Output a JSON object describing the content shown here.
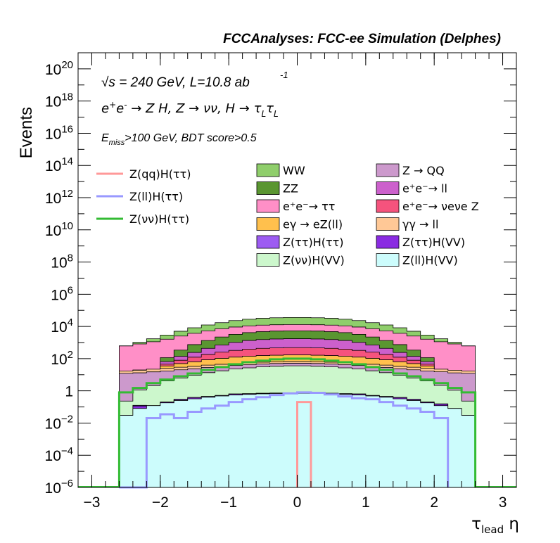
{
  "chart_data": {
    "type": "area",
    "title": "FCCAnalyses: FCC-ee Simulation (Delphes)",
    "xlabel": "τ_lead η",
    "ylabel": "Events",
    "x_scale": "linear",
    "y_scale": "log",
    "xlim": [
      -3.2,
      3.2
    ],
    "ylim": [
      1e-06,
      1e+21
    ],
    "x_ticks": [
      -3,
      -2,
      -1,
      0,
      1,
      2,
      3
    ],
    "x_tick_labels": [
      "−3",
      "−2",
      "−1",
      "0",
      "1",
      "2",
      "3"
    ],
    "y_ticks": [
      {
        "v": 1e-06,
        "base": "10",
        "exp": "−6"
      },
      {
        "v": 0.0001,
        "base": "10",
        "exp": "−4"
      },
      {
        "v": 0.01,
        "base": "10",
        "exp": "−2"
      },
      {
        "v": 1,
        "base": "1",
        "exp": ""
      },
      {
        "v": 100.0,
        "base": "10",
        "exp": "2"
      },
      {
        "v": 10000.0,
        "base": "10",
        "exp": "4"
      },
      {
        "v": 1000000.0,
        "base": "10",
        "exp": "6"
      },
      {
        "v": 100000000.0,
        "base": "10",
        "exp": "8"
      },
      {
        "v": 10000000000.0,
        "base": "10",
        "exp": "10"
      },
      {
        "v": 1000000000000.0,
        "base": "10",
        "exp": "12"
      },
      {
        "v": 100000000000000.0,
        "base": "10",
        "exp": "14"
      },
      {
        "v": 1e+16,
        "base": "10",
        "exp": "16"
      },
      {
        "v": 1e+18,
        "base": "10",
        "exp": "18"
      },
      {
        "v": 1e+20,
        "base": "10",
        "exp": "20"
      }
    ],
    "annotations": {
      "energy": "√s = 240 GeV, L=10.8 ab",
      "energy_sup": "-1",
      "process": "e⁺e⁻ → Z H, Z → νν, H → τ_Lτ_L",
      "cuts": "E_miss>100 GeV, BDT score>0.5"
    },
    "bin_edges": [
      -2.6,
      -2.4,
      -2.2,
      -2.0,
      -1.8,
      -1.6,
      -1.4,
      -1.2,
      -1.0,
      -0.8,
      -0.6,
      -0.4,
      -0.2,
      0.0,
      0.2,
      0.4,
      0.6,
      0.8,
      1.0,
      1.2,
      1.4,
      1.6,
      1.8,
      2.0,
      2.2,
      2.4,
      2.6
    ],
    "stack_order_bottom_to_top": [
      "Z(ll)H(VV)",
      "Z(ττ)H(VV)",
      "Z(ττ)H(ττ)",
      "Z(νν)H(VV)",
      "Z → QQ",
      "γγ → ll",
      "eγ → eZ(ll)",
      "e⁺e⁻→ νeνe Z",
      "e⁺e⁻→ ll",
      "ZZ",
      "e⁺e⁻→ ττ",
      "WW"
    ],
    "stack_series": [
      {
        "name": "Z(ll)H(VV)",
        "label_main": "Z(ll)H(VV)",
        "color": "#ccfcfc",
        "values": [
          0.03,
          0.08,
          0.12,
          0.18,
          0.25,
          0.32,
          0.4,
          0.48,
          0.55,
          0.6,
          0.65,
          0.68,
          0.7,
          0.7,
          0.68,
          0.65,
          0.6,
          0.55,
          0.48,
          0.4,
          0.32,
          0.25,
          0.18,
          0.12,
          0.08,
          0.03
        ]
      },
      {
        "name": "Z(ττ)H(VV)",
        "label_main": "Z(ττ)H(VV)",
        "color": "#8a2be2",
        "values": [
          0.0,
          0.035,
          0.0,
          0.02,
          0.04,
          0.06,
          0.04,
          0.03,
          0.08,
          0.06,
          0.05,
          0.04,
          0.05,
          0.05,
          0.04,
          0.05,
          0.06,
          0.08,
          0.03,
          0.04,
          0.06,
          0.04,
          0.02,
          0.03,
          0.0,
          0.0
        ]
      },
      {
        "name": "Z(ττ)H(ττ)",
        "label_main": "Z(ττ)H(ττ)",
        "color": "#9d5cf2",
        "values": [
          0.0,
          0.01,
          0.0,
          0.005,
          0.01,
          0.012,
          0.01,
          0.008,
          0.012,
          0.01,
          0.008,
          0.01,
          0.01,
          0.01,
          0.01,
          0.008,
          0.01,
          0.012,
          0.008,
          0.01,
          0.012,
          0.01,
          0.005,
          0.006,
          0.0,
          0.0
        ]
      },
      {
        "name": "Z(νν)H(VV)",
        "label_main": "Z(νν)H(VV)",
        "color": "#ccf7cc",
        "values": [
          0.2,
          1,
          2,
          4,
          6,
          9,
          13,
          17,
          22,
          26,
          30,
          33,
          35,
          35,
          33,
          30,
          26,
          22,
          17,
          13,
          9,
          6,
          4,
          2,
          1,
          0.2
        ]
      },
      {
        "name": "Z → QQ",
        "label_main": "Z → QQ",
        "color": "#cc99cc",
        "values": [
          12,
          12,
          13,
          13,
          14,
          14,
          15,
          15,
          15,
          16,
          16,
          16,
          16,
          16,
          16,
          16,
          16,
          15,
          15,
          15,
          14,
          14,
          13,
          13,
          12,
          12
        ]
      },
      {
        "name": "γγ → ll",
        "label_main": "γγ → ll",
        "color": "#ffc896",
        "values": [
          5,
          6,
          7,
          8,
          9,
          10,
          11,
          12,
          12,
          13,
          13,
          13,
          14,
          14,
          13,
          13,
          13,
          12,
          12,
          11,
          10,
          9,
          8,
          7,
          6,
          5
        ]
      },
      {
        "name": "eγ → eZ(ll)",
        "label_main": "eγ → eZ(ll)",
        "color": "#ffc04d",
        "values": [
          0,
          0,
          0,
          10,
          20,
          30,
          45,
          60,
          75,
          85,
          95,
          100,
          105,
          105,
          100,
          95,
          85,
          75,
          60,
          45,
          30,
          20,
          10,
          0,
          0,
          0
        ]
      },
      {
        "name": "e⁺e⁻→ νeνe Z",
        "label_main": "e⁺e⁻→ νeνe Z",
        "color": "#f5537d",
        "values": [
          0,
          0,
          0,
          10,
          30,
          60,
          100,
          150,
          200,
          250,
          280,
          300,
          310,
          310,
          300,
          280,
          250,
          200,
          150,
          100,
          60,
          30,
          10,
          0,
          0,
          0
        ]
      },
      {
        "name": "e⁺e⁻→ ll",
        "label_main": "e⁺e⁻→ ll",
        "color": "#cc60cc",
        "values": [
          0,
          0,
          0,
          20,
          60,
          120,
          250,
          450,
          700,
          950,
          1100,
          1200,
          1250,
          1250,
          1200,
          1100,
          950,
          700,
          450,
          250,
          120,
          60,
          20,
          0,
          0,
          0
        ]
      },
      {
        "name": "ZZ",
        "label_main": "ZZ",
        "color": "#5a9631",
        "values": [
          0,
          0,
          0,
          50,
          200,
          500,
          900,
          1500,
          2200,
          2800,
          3200,
          3500,
          3600,
          3600,
          3500,
          3200,
          2800,
          2200,
          1500,
          900,
          500,
          200,
          50,
          0,
          0,
          0
        ]
      },
      {
        "name": "e⁺e⁻→ ττ",
        "label_main": "e⁺e⁻→ ττ",
        "color": "#ff8fc7",
        "values": [
          600,
          800,
          1100,
          1500,
          2200,
          3000,
          4000,
          5000,
          6000,
          6800,
          7300,
          7600,
          7800,
          7800,
          7600,
          7300,
          6800,
          6000,
          5000,
          4000,
          3000,
          2200,
          1500,
          1100,
          800,
          600
        ]
      },
      {
        "name": "WW",
        "label_main": "WW",
        "color": "#8fce6b",
        "values": [
          0,
          200,
          600,
          1300,
          2500,
          4500,
          7000,
          10000,
          14000,
          17000,
          20000,
          22000,
          23000,
          23000,
          22000,
          20000,
          17000,
          14000,
          10000,
          7000,
          4500,
          2500,
          1300,
          600,
          200,
          0
        ]
      }
    ],
    "line_series": [
      {
        "name": "Z(qq)H(ττ)",
        "color": "#ff9999",
        "bin_edges": [
          0.0,
          0.2
        ],
        "values": [
          0.2
        ]
      },
      {
        "name": "Z(ll)H(ττ)",
        "color": "#9999ff",
        "bin_edges": [
          -2.6,
          -2.4,
          -2.2,
          -2.0,
          -1.8,
          -1.6,
          -1.4,
          -1.2,
          -1.0,
          -0.8,
          -0.6,
          -0.4,
          -0.2,
          0.0,
          0.2,
          0.4,
          0.6,
          0.8,
          1.0,
          1.2,
          1.4,
          1.6,
          1.8,
          2.0,
          2.2
        ],
        "values": [
          0.0,
          0.0,
          0.02,
          0.035,
          0.02,
          0.05,
          0.08,
          0.12,
          0.2,
          0.3,
          0.4,
          0.55,
          0.7,
          0.8,
          0.75,
          0.6,
          0.45,
          0.35,
          0.3,
          0.2,
          0.12,
          0.08,
          0.05,
          0.02
        ]
      },
      {
        "name": "Z(νν)H(ττ)",
        "color": "#33bb33",
        "bin_edges": [
          -2.6,
          -2.4,
          -2.2,
          -2.0,
          -1.8,
          -1.6,
          -1.4,
          -1.2,
          -1.0,
          -0.8,
          -0.6,
          -0.4,
          -0.2,
          0.0,
          0.2,
          0.4,
          0.6,
          0.8,
          1.0,
          1.2,
          1.4,
          1.6,
          1.8,
          2.0,
          2.2,
          2.4,
          2.6
        ],
        "values": [
          0.8,
          1.5,
          3,
          5,
          8,
          12,
          20,
          30,
          45,
          60,
          75,
          90,
          100,
          100,
          90,
          75,
          60,
          45,
          30,
          20,
          12,
          8,
          5,
          3,
          1.5,
          0.8
        ]
      }
    ],
    "legend_lines": [
      {
        "label": "Z(qq)H(ττ)",
        "color": "#ff9999"
      },
      {
        "label": "Z(ll)H(ττ)",
        "color": "#9999ff"
      },
      {
        "label": "Z(νν)H(ττ)",
        "color": "#33bb33"
      }
    ],
    "legend_boxes_col1": [
      {
        "label": "WW",
        "color": "#8fce6b"
      },
      {
        "label": "ZZ",
        "color": "#5a9631"
      },
      {
        "label": "e⁺e⁻→ ττ",
        "color": "#ff8fc7"
      },
      {
        "label": "eγ → eZ(ll)",
        "color": "#ffc04d"
      },
      {
        "label": "Z(ττ)H(ττ)",
        "color": "#9d5cf2"
      },
      {
        "label": "Z(νν)H(VV)",
        "color": "#ccf7cc"
      }
    ],
    "legend_boxes_col2": [
      {
        "label": "Z → QQ",
        "color": "#cc99cc"
      },
      {
        "label": "e⁺e⁻→ ll",
        "color": "#cc60cc"
      },
      {
        "label": "e⁺e⁻→ νeνe Z",
        "color": "#f5537d"
      },
      {
        "label": "γγ → ll",
        "color": "#ffc896"
      },
      {
        "label": "Z(ττ)H(VV)",
        "color": "#8a2be2"
      },
      {
        "label": "Z(ll)H(VV)",
        "color": "#ccfcfc"
      }
    ]
  }
}
